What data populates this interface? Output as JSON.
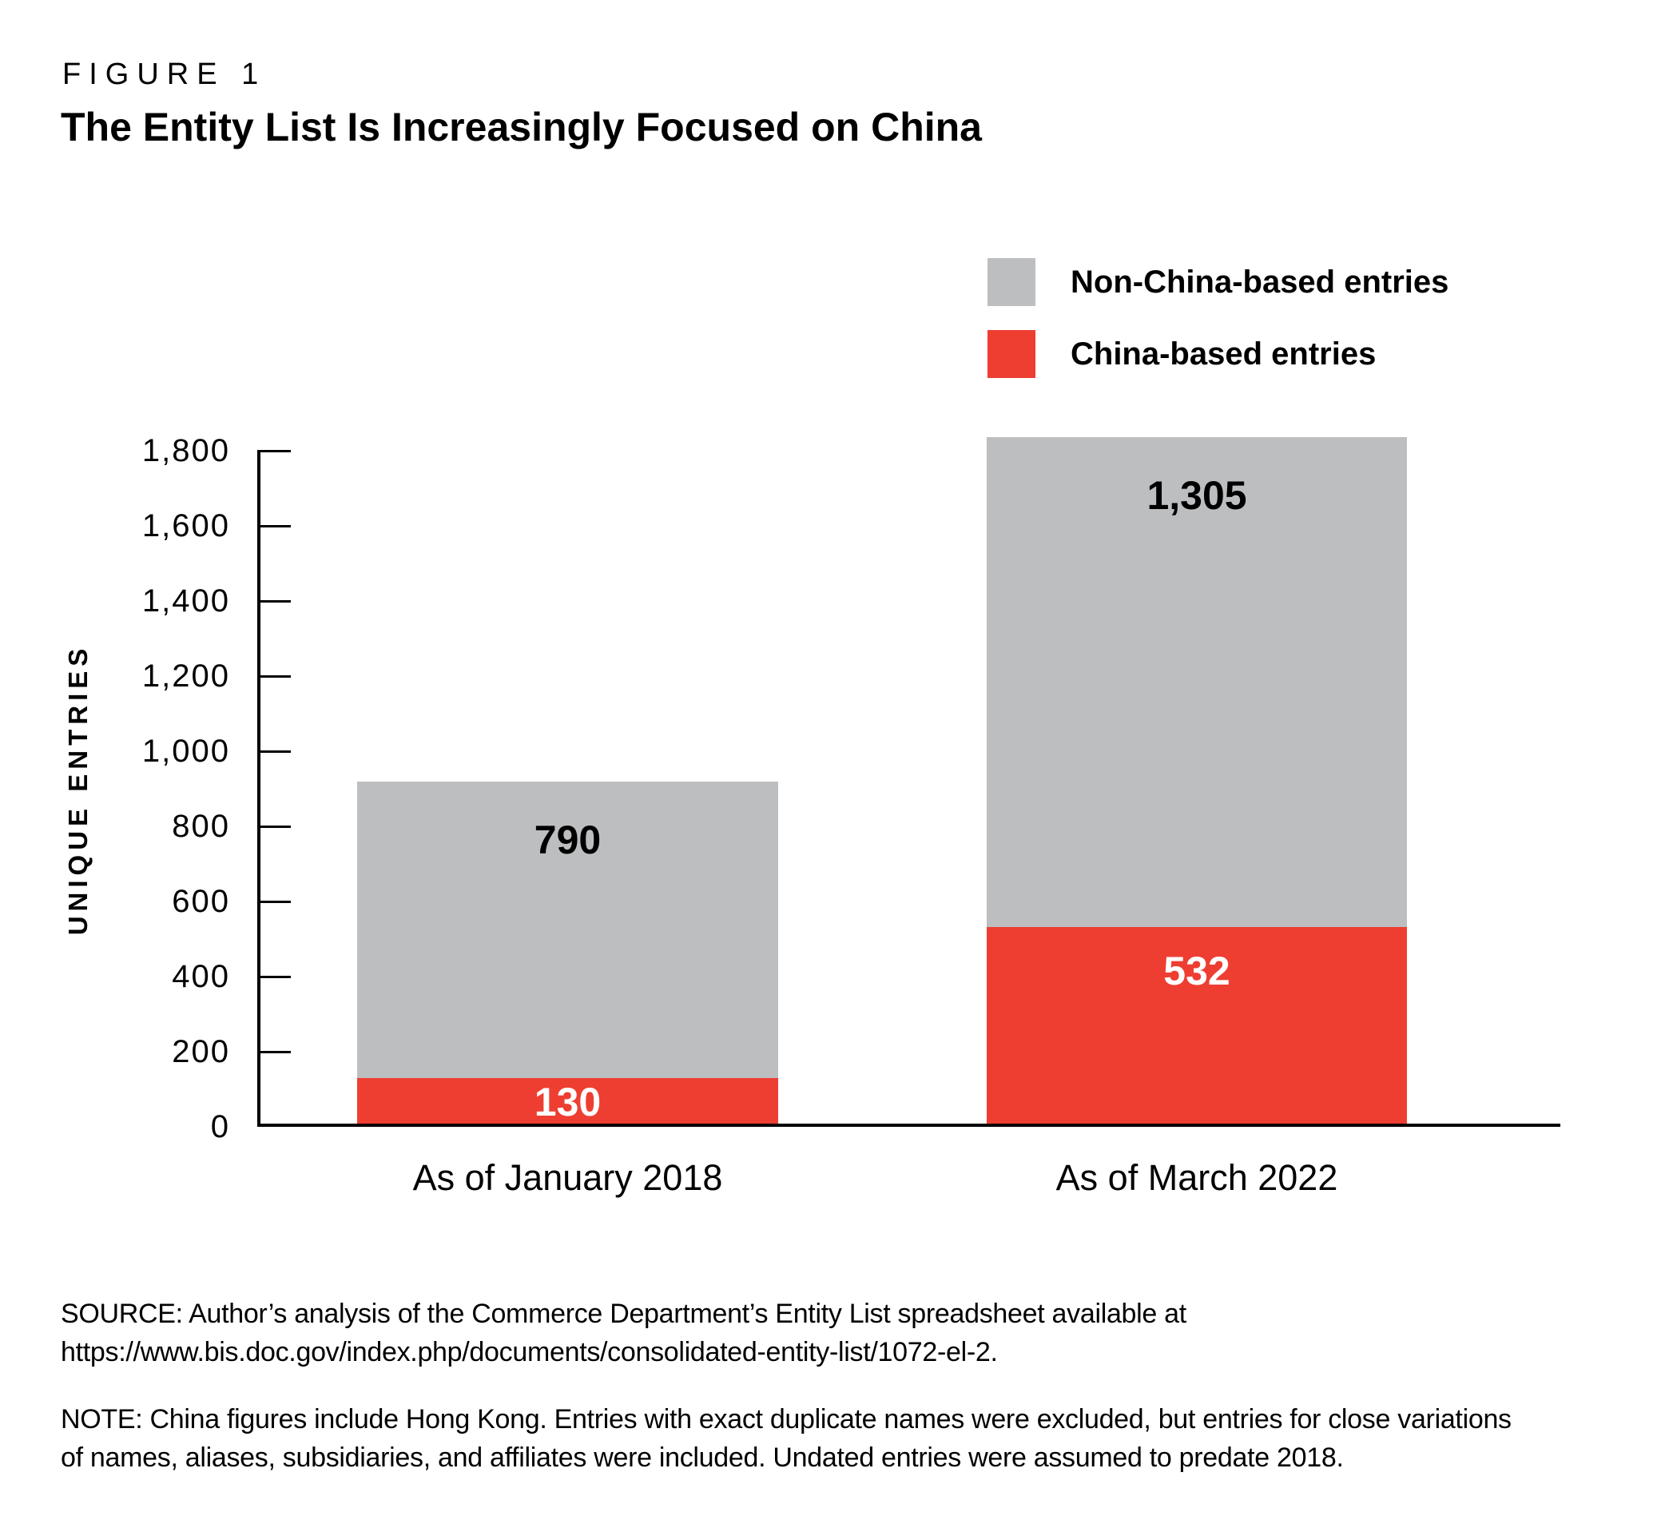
{
  "header": {
    "figure_label": "FIGURE 1",
    "title": "The Entity List Is Increasingly Focused on China"
  },
  "legend": {
    "items": [
      {
        "label": "Non-China-based entries",
        "color": "#BCBEC0"
      },
      {
        "label": "China-based entries",
        "color": "#EE3E32"
      }
    ]
  },
  "chart_data": {
    "type": "bar",
    "stacked": true,
    "title": "The Entity List Is Increasingly Focused on China",
    "xlabel": "",
    "ylabel": "UNIQUE ENTRIES",
    "ylim": [
      0,
      1800
    ],
    "ytick_step": 200,
    "ytick_labels": [
      "0",
      "200",
      "400",
      "600",
      "800",
      "1,000",
      "1,200",
      "1,400",
      "1,600",
      "1,800"
    ],
    "grid": false,
    "legend_position": "top-right",
    "categories": [
      "As of January 2018",
      "As of March 2022"
    ],
    "series": [
      {
        "name": "China-based entries",
        "color": "#EE3E32",
        "values": [
          130,
          532
        ],
        "labels": [
          "130",
          "532"
        ],
        "label_color": "#FFFFFF"
      },
      {
        "name": "Non-China-based entries",
        "color": "#BCBEC0",
        "values": [
          790,
          1305
        ],
        "labels": [
          "790",
          "1,305"
        ],
        "label_color": "#000000"
      }
    ],
    "totals": [
      920,
      1837
    ]
  },
  "footer": {
    "source_lines": [
      "SOURCE: Author’s analysis of the Commerce Department’s Entity List spreadsheet available at",
      "https://www.bis.doc.gov/index.php/documents/consolidated-entity-list/1072-el-2."
    ],
    "note_lines": [
      "NOTE: China figures include Hong Kong. Entries with exact duplicate names were excluded, but entries for close variations",
      "of names, aliases, subsidiaries, and affiliates were included. Undated entries were assumed to predate 2018."
    ]
  },
  "colors": {
    "china_red": "#EE3E32",
    "non_china_gray": "#BCBEC0",
    "axis_black": "#000000"
  }
}
